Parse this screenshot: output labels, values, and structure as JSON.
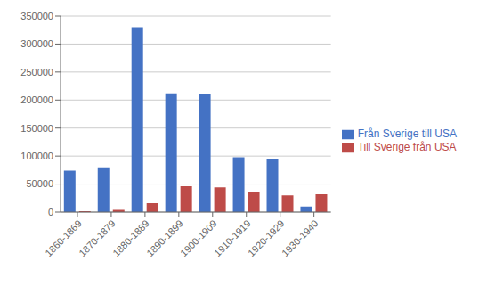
{
  "chart_data": {
    "type": "bar",
    "categories": [
      "1860-1869",
      "1870-1879",
      "1880-1889",
      "1890-1899",
      "1900-1909",
      "1910-1919",
      "1920-1929",
      "1930-1940"
    ],
    "series": [
      {
        "name": "Från Sverige till USA",
        "color": "#4472C4",
        "values": [
          74000,
          80000,
          330000,
          212000,
          210000,
          98000,
          95000,
          10000
        ]
      },
      {
        "name": "Till Sverige från USA",
        "color": "#BE4B48",
        "values": [
          1500,
          4000,
          16000,
          46000,
          44000,
          36000,
          30000,
          32000
        ]
      }
    ],
    "ylim": [
      0,
      350000
    ],
    "yticks": [
      0,
      50000,
      100000,
      150000,
      200000,
      250000,
      300000,
      350000
    ],
    "grid": true,
    "legend": "right"
  }
}
